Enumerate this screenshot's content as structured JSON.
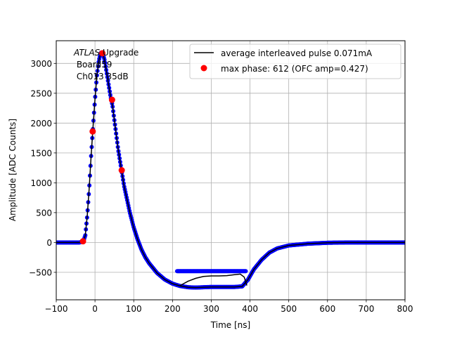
{
  "chart_data": {
    "type": "line",
    "xlabel": "Time [ns]",
    "ylabel": "Amplitude [ADC Counts]",
    "xlim": [
      -100,
      800
    ],
    "ylim": [
      -960,
      3380
    ],
    "xticks": [
      -100,
      0,
      100,
      200,
      300,
      400,
      500,
      600,
      700,
      800
    ],
    "yticks": [
      -500,
      0,
      500,
      1000,
      1500,
      2000,
      2500,
      3000
    ],
    "grid": true,
    "legend_position": "top-right",
    "annotation": {
      "italic": "ATLAS",
      "rest": " Upgrade",
      "line2": " Board59",
      "line3": " Ch013 35dB"
    },
    "series": [
      {
        "name": "average interleaved pulse 0.071mA",
        "style": "line",
        "color": "#000000",
        "x": [
          -100,
          -40,
          -30,
          -25,
          -20,
          -15,
          -10,
          -5,
          0,
          5,
          10,
          15,
          20,
          25,
          30,
          35,
          40,
          45,
          50,
          55,
          60,
          65,
          70,
          75,
          80,
          90,
          100,
          110,
          120,
          130,
          140,
          150,
          160,
          180,
          200,
          220,
          240,
          260,
          280,
          300,
          320,
          340,
          360,
          380,
          395,
          410,
          430,
          450,
          470,
          500,
          550,
          600,
          650,
          700,
          750,
          800
        ],
        "y": [
          0,
          0,
          20,
          120,
          450,
          900,
          1450,
          1950,
          2400,
          2800,
          3050,
          3180,
          3170,
          3050,
          2850,
          2650,
          2450,
          2300,
          2050,
          1800,
          1550,
          1350,
          1150,
          950,
          800,
          500,
          250,
          50,
          -120,
          -250,
          -350,
          -430,
          -510,
          -620,
          -690,
          -730,
          -750,
          -755,
          -750,
          -745,
          -745,
          -745,
          -745,
          -735,
          -620,
          -450,
          -290,
          -170,
          -100,
          -50,
          -20,
          -5,
          0,
          0,
          0,
          0
        ]
      },
      {
        "name": "",
        "style": "line",
        "color": "#000000",
        "x": [
          220,
          240,
          260,
          280,
          300,
          320,
          340,
          360,
          375,
          385,
          392
        ],
        "y": [
          -720,
          -650,
          -600,
          -570,
          -560,
          -560,
          -555,
          -540,
          -530,
          -580,
          -720
        ]
      },
      {
        "name": "",
        "style": "dots",
        "color": "#0000ff",
        "x": [
          -100,
          -40,
          -30,
          -25,
          -20,
          -15,
          -10,
          -5,
          0,
          5,
          10,
          15,
          20,
          25,
          30,
          35,
          40,
          45,
          50,
          55,
          60,
          65,
          70,
          75,
          80,
          90,
          100,
          110,
          120,
          130,
          140,
          150,
          160,
          180,
          200,
          220,
          240,
          260,
          280,
          300,
          320,
          340,
          360,
          380,
          395,
          410,
          430,
          450,
          470,
          500,
          550,
          600,
          650,
          700,
          750,
          800
        ],
        "y": [
          0,
          0,
          20,
          120,
          450,
          900,
          1450,
          1950,
          2400,
          2800,
          3050,
          3180,
          3170,
          3050,
          2850,
          2650,
          2450,
          2300,
          2050,
          1800,
          1550,
          1350,
          1150,
          950,
          800,
          500,
          250,
          50,
          -120,
          -250,
          -350,
          -430,
          -510,
          -620,
          -690,
          -730,
          -750,
          -755,
          -750,
          -745,
          -745,
          -745,
          -745,
          -735,
          -620,
          -450,
          -290,
          -170,
          -100,
          -50,
          -20,
          -5,
          0,
          0,
          0,
          0
        ]
      },
      {
        "name": "",
        "style": "dots",
        "color": "#0000ff",
        "x": [
          212,
          390
        ],
        "y": [
          -480,
          -480
        ]
      },
      {
        "name": "max phase: 612 (OFC amp=0.427)",
        "style": "markers",
        "color": "#ff0000",
        "x": [
          -31,
          -6,
          19,
          44,
          69
        ],
        "y": [
          20,
          1860,
          3170,
          2390,
          1210
        ]
      }
    ]
  }
}
